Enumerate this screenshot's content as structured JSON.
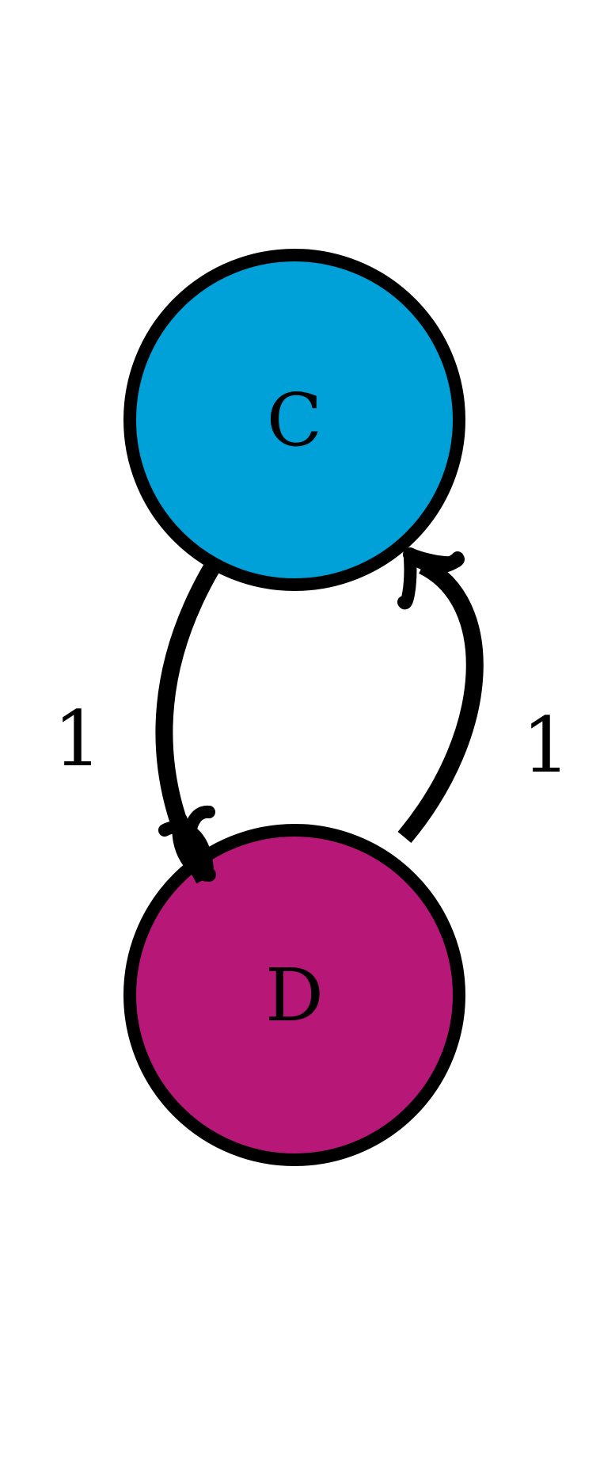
{
  "nodes": [
    {
      "id": "C",
      "label": "C",
      "fill": "#00A0D8"
    },
    {
      "id": "D",
      "label": "D",
      "fill": "#B71777"
    }
  ],
  "edges": [
    {
      "from": "C",
      "to": "D",
      "label": "1"
    },
    {
      "from": "D",
      "to": "C",
      "label": "1"
    }
  ],
  "colors": {
    "stroke": "#000000",
    "background": "#ffffff"
  }
}
